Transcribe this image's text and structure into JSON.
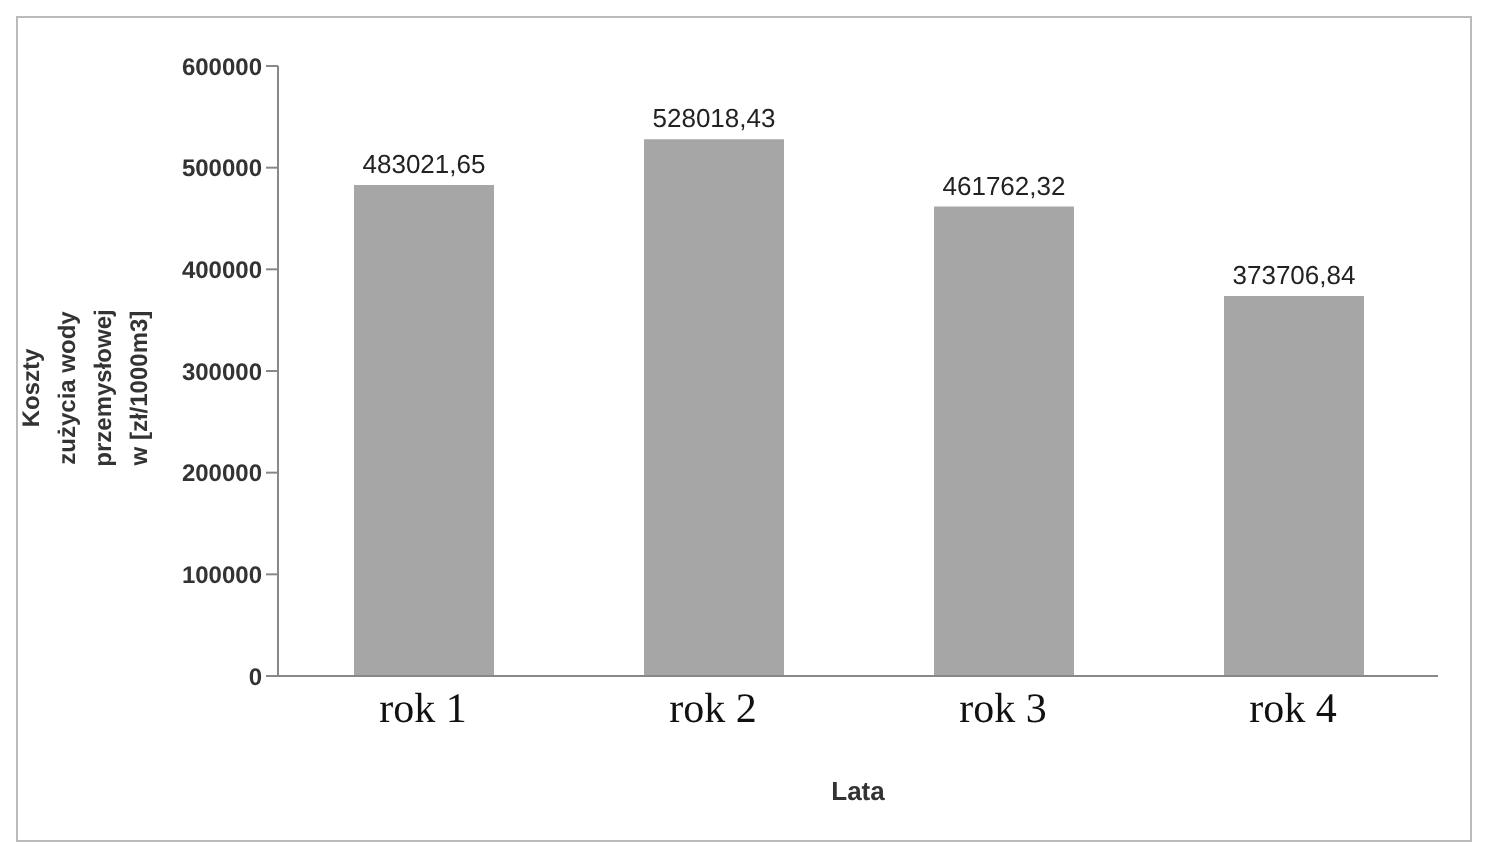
{
  "chart_data": {
    "type": "bar",
    "categories": [
      "rok 1",
      "rok 2",
      "rok 3",
      "rok 4"
    ],
    "values": [
      483021.65,
      528018.43,
      461762.32,
      373706.84
    ],
    "value_labels": [
      "483021,65",
      "528018,43",
      "461762,32",
      "373706,84"
    ],
    "color": "#a6a6a6",
    "xlabel": "Lata",
    "ylabel": "Koszty zużycia wody przemysłowej w [zł/1000m3]",
    "ylim": [
      0,
      600000
    ],
    "yticks": [
      0,
      100000,
      200000,
      300000,
      400000,
      500000,
      600000
    ],
    "grid": false,
    "legend": false
  }
}
